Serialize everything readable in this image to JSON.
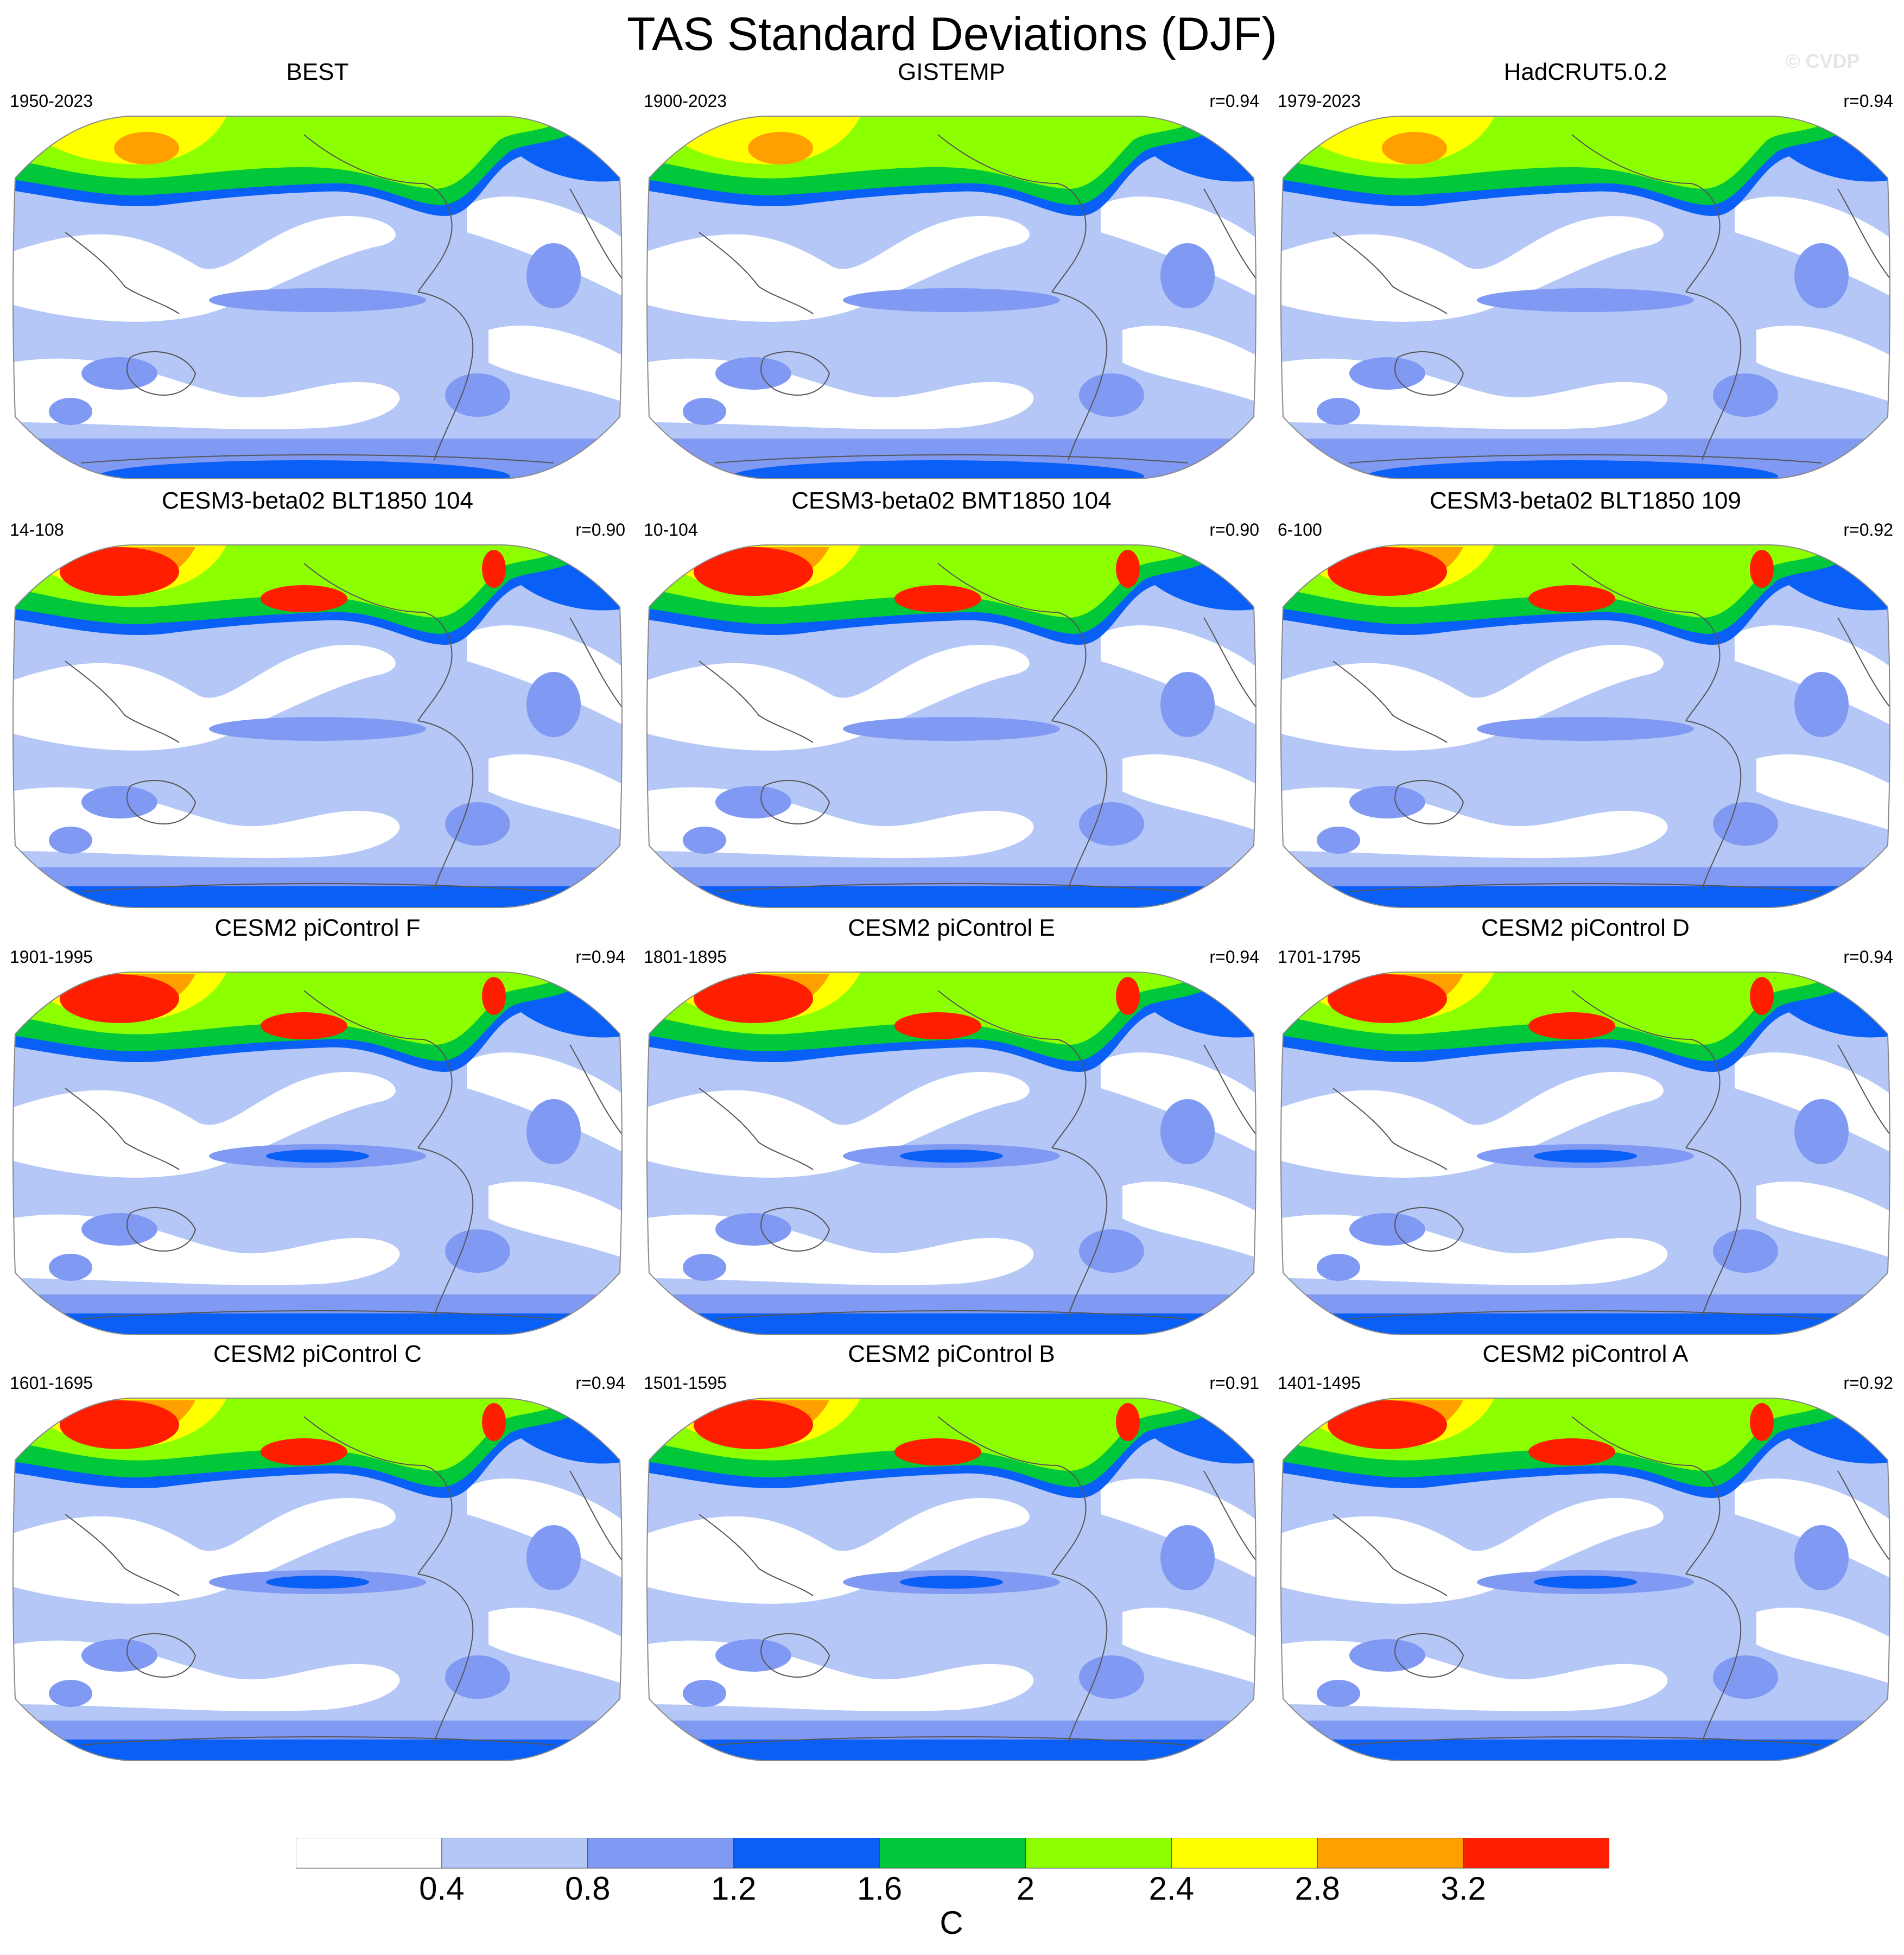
{
  "title": "TAS Standard Deviations (DJF)",
  "watermark": "© CVDP",
  "colors": {
    "levels": [
      "#ffffff",
      "#b4c7f6",
      "#8099f2",
      "#0a5ff6",
      "#00c83a",
      "#8cff00",
      "#ffff00",
      "#ffa000",
      "#ff1e00"
    ],
    "land_outline": "#555555",
    "map_border": "#888888"
  },
  "colorbar": {
    "labels": [
      "0.4",
      "0.8",
      "1.2",
      "1.6",
      "2",
      "2.4",
      "2.8",
      "3.2"
    ],
    "units": "C"
  },
  "panels": [
    {
      "title": "BEST",
      "period": "1950-2023",
      "r": ""
    },
    {
      "title": "GISTEMP",
      "period": "1900-2023",
      "r": "r=0.94"
    },
    {
      "title": "HadCRUT5.0.2",
      "period": "1979-2023",
      "r": "r=0.94"
    },
    {
      "title": "CESM3-beta02 BLT1850 104",
      "period": "14-108",
      "r": "r=0.90"
    },
    {
      "title": "CESM3-beta02 BMT1850 104",
      "period": "10-104",
      "r": "r=0.90"
    },
    {
      "title": "CESM3-beta02 BLT1850 109",
      "period": "6-100",
      "r": "r=0.92"
    },
    {
      "title": "CESM2 piControl F",
      "period": "1901-1995",
      "r": "r=0.94"
    },
    {
      "title": "CESM2 piControl E",
      "period": "1801-1895",
      "r": "r=0.94"
    },
    {
      "title": "CESM2 piControl D",
      "period": "1701-1795",
      "r": "r=0.94"
    },
    {
      "title": "CESM2 piControl C",
      "period": "1601-1695",
      "r": "r=0.94"
    },
    {
      "title": "CESM2 piControl B",
      "period": "1501-1595",
      "r": "r=0.91"
    },
    {
      "title": "CESM2 piControl A",
      "period": "1401-1495",
      "r": "r=0.92"
    }
  ]
}
